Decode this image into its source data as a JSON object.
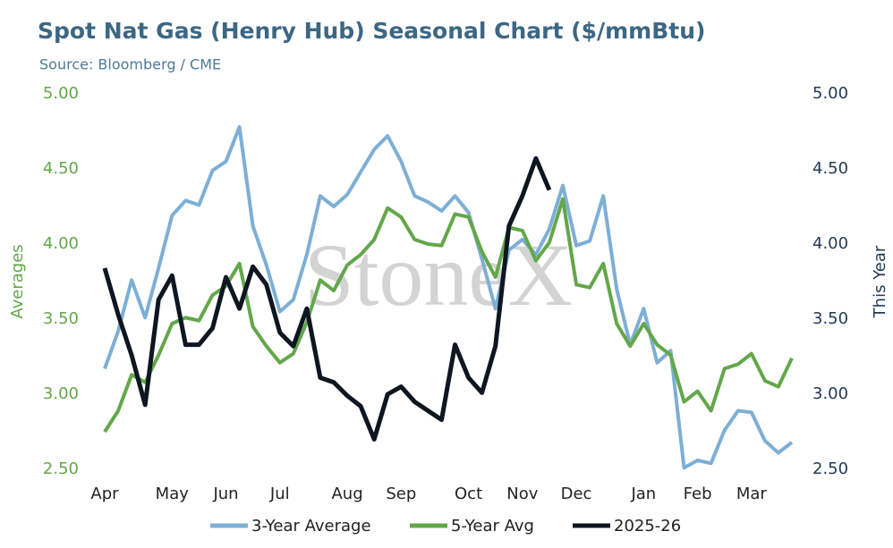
{
  "chart_data": {
    "type": "line",
    "title": "Spot Nat Gas (Henry Hub) Seasonal Chart ($/mmBtu)",
    "subtitle": "Source: Bloomberg / CME",
    "y_label": "Averages",
    "y2_label": "This Year",
    "watermark": "StoneX",
    "categories": [
      "Apr",
      null,
      null,
      null,
      null,
      "May",
      null,
      null,
      null,
      "Jun",
      null,
      null,
      null,
      "Jul",
      null,
      null,
      null,
      null,
      "Aug",
      null,
      null,
      null,
      "Sep",
      null,
      null,
      null,
      null,
      "Oct",
      null,
      null,
      null,
      "Nov",
      null,
      null,
      null,
      "Dec",
      null,
      null,
      null,
      null,
      "Jan",
      null,
      null,
      null,
      "Feb",
      null,
      null,
      null,
      "Mar",
      null,
      null,
      null
    ],
    "ylim": [
      2.5,
      5
    ],
    "yticks": [
      {
        "value": 2.5,
        "label": "2.50"
      },
      {
        "value": 3,
        "label": "3.00"
      },
      {
        "value": 3.5,
        "label": "3.50"
      },
      {
        "value": 4,
        "label": "4.00"
      },
      {
        "value": 4.5,
        "label": "4.50"
      },
      {
        "value": 5,
        "label": "5.00"
      }
    ],
    "y2lim": [
      2.5,
      5
    ],
    "y2ticks": [
      {
        "value": 2.5,
        "label": "2.50"
      },
      {
        "value": 3,
        "label": "3.00"
      },
      {
        "value": 3.5,
        "label": "3.50"
      },
      {
        "value": 4,
        "label": "4.00"
      },
      {
        "value": 4.5,
        "label": "4.50"
      },
      {
        "value": 5,
        "label": "5.00"
      }
    ],
    "grid": false,
    "legend": "bottom",
    "series": [
      {
        "name": "3-Year Average",
        "color": "#7dafd6",
        "values": [
          3.17,
          3.42,
          3.76,
          3.51,
          3.84,
          4.19,
          4.29,
          4.26,
          4.49,
          4.55,
          4.78,
          4.12,
          3.86,
          3.55,
          3.63,
          3.93,
          4.32,
          4.25,
          4.33,
          4.48,
          4.63,
          4.72,
          4.55,
          4.32,
          4.28,
          4.22,
          4.32,
          4.21,
          3.9,
          3.57,
          3.96,
          4.03,
          3.93,
          4.1,
          4.39,
          3.99,
          4.02,
          4.32,
          3.7,
          3.33,
          3.57,
          3.21,
          3.29,
          2.51,
          2.56,
          2.54,
          2.76,
          2.89,
          2.88,
          2.69,
          2.61,
          2.68
        ]
      },
      {
        "name": "5-Year Avg",
        "color": "#63a74a",
        "values": [
          2.75,
          2.89,
          3.13,
          3.08,
          3.26,
          3.47,
          3.51,
          3.49,
          3.66,
          3.72,
          3.87,
          3.45,
          3.32,
          3.21,
          3.27,
          3.48,
          3.76,
          3.69,
          3.86,
          3.93,
          4.03,
          4.24,
          4.18,
          4.03,
          4.0,
          3.99,
          4.2,
          4.18,
          3.95,
          3.78,
          4.11,
          4.09,
          3.89,
          4.01,
          4.3,
          3.73,
          3.71,
          3.87,
          3.47,
          3.32,
          3.47,
          3.33,
          3.26,
          2.95,
          3.02,
          2.89,
          3.17,
          3.2,
          3.27,
          3.09,
          3.05,
          3.24
        ]
      },
      {
        "name": "2025-26",
        "color": "#0e1621",
        "axis": "y2",
        "values": [
          3.84,
          3.53,
          3.26,
          2.93,
          3.63,
          3.79,
          3.33,
          3.33,
          3.44,
          3.78,
          3.57,
          3.85,
          3.73,
          3.41,
          3.32,
          3.57,
          3.11,
          3.08,
          2.99,
          2.92,
          2.7,
          3.0,
          3.05,
          2.95,
          2.89,
          2.83,
          3.33,
          3.11,
          3.01,
          3.32,
          4.12,
          4.32,
          4.57,
          4.36,
          null,
          null,
          null,
          null,
          null,
          null,
          null,
          null,
          null,
          null,
          null,
          null,
          null,
          null,
          null,
          null,
          null,
          null
        ]
      }
    ]
  }
}
